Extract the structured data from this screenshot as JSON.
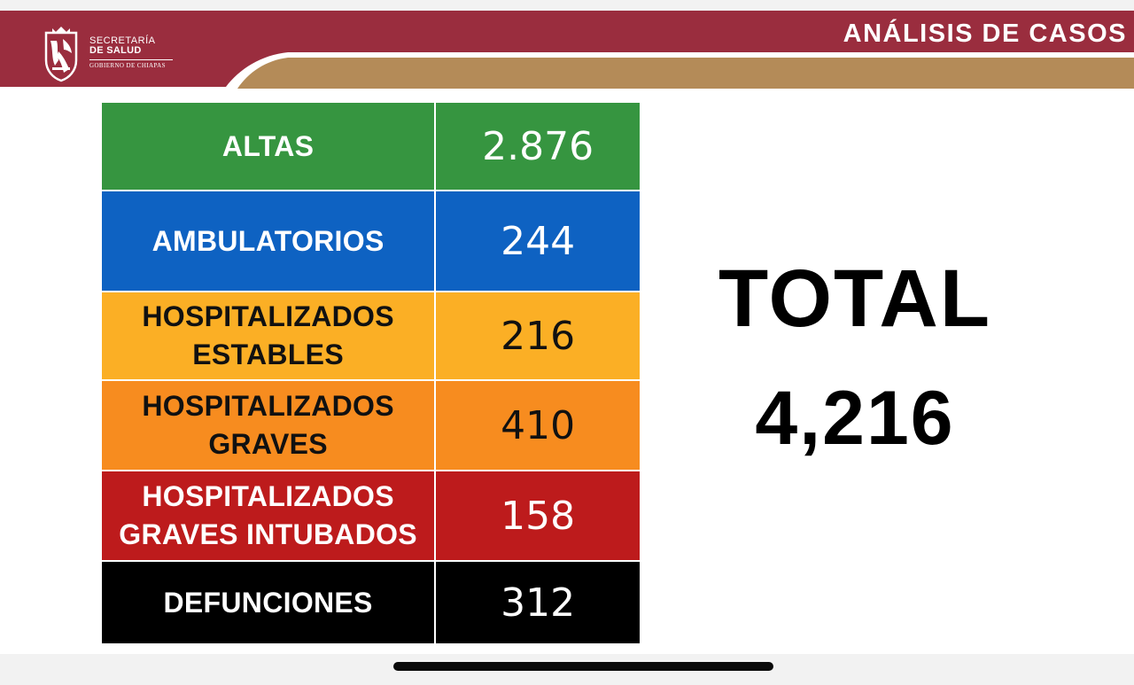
{
  "header": {
    "title": "ANÁLISIS DE CASOS",
    "logo": {
      "line1": "SECRETARÍA",
      "line2": "DE SALUD",
      "line3": "GOBIERNO DE CHIAPAS",
      "icon": "chiapas-coat-of-arms-icon"
    },
    "colors": {
      "band": "#9a2d3e",
      "stripe": "#b48b58"
    }
  },
  "cases": {
    "rows": [
      {
        "label_lines": [
          "ALTAS"
        ],
        "value": "2.876",
        "color": "#369540"
      },
      {
        "label_lines": [
          "AMBULATORIOS"
        ],
        "value": "244",
        "color": "#0e62c2"
      },
      {
        "label_lines": [
          "HOSPITALIZADOS",
          "ESTABLES"
        ],
        "value": "216",
        "color": "#fbaf25"
      },
      {
        "label_lines": [
          "HOSPITALIZADOS",
          "GRAVES"
        ],
        "value": "410",
        "color": "#f78c1f"
      },
      {
        "label_lines": [
          "HOSPITALIZADOS",
          "GRAVES INTUBADOS"
        ],
        "value": "158",
        "color": "#bd1b1c"
      },
      {
        "label_lines": [
          "DEFUNCIONES"
        ],
        "value": "312",
        "color": "#000000"
      }
    ]
  },
  "total": {
    "label": "TOTAL",
    "value": "4,216"
  }
}
